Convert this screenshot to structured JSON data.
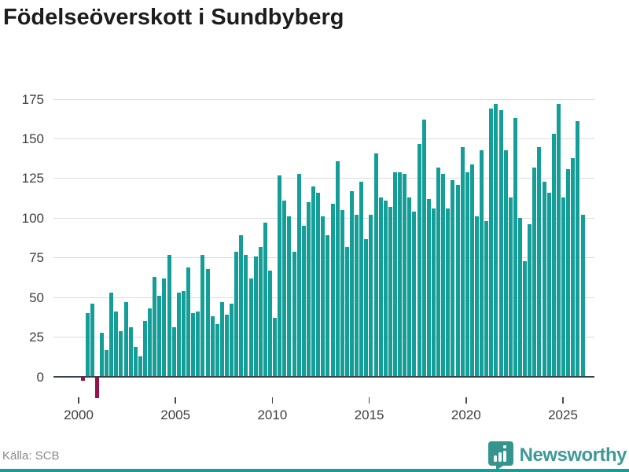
{
  "title": "Födelseöverskott i Sundbyberg",
  "footer": {
    "source": "Källa: SCB",
    "brand": "Newsworthy"
  },
  "colors": {
    "bar_positive": "#149e97",
    "bar_negative": "#9b1048",
    "axis": "#37424a",
    "gridline": "#dcdcdc",
    "tick_label": "#3f3f3f",
    "title": "#1d1d1d",
    "source_text": "#8a8a8a",
    "brand": "#3d9a96",
    "bottom_strip": "#149e97"
  },
  "chart_data": {
    "type": "bar",
    "title": "Födelseöverskott i Sundbyberg",
    "frequency": "quarterly",
    "start_period": "2000 Q1",
    "x_tick_labels": [
      "2000",
      "2005",
      "2010",
      "2015",
      "2020",
      "2025"
    ],
    "y_tick_labels": [
      "0",
      "25",
      "50",
      "75",
      "100",
      "125",
      "150",
      "175"
    ],
    "y_ticks": [
      0,
      25,
      50,
      75,
      100,
      125,
      150,
      175
    ],
    "ylim": [
      -20,
      180
    ],
    "grid": "horizontal",
    "legend": "none",
    "values": [
      -2,
      40,
      46,
      -13,
      28,
      17,
      53,
      41,
      29,
      47,
      31,
      19,
      13,
      35,
      43,
      63,
      51,
      62,
      77,
      31,
      53,
      54,
      69,
      40,
      41,
      77,
      68,
      38,
      33,
      47,
      39,
      46,
      79,
      89,
      77,
      62,
      76,
      82,
      97,
      67,
      37,
      127,
      111,
      101,
      79,
      128,
      95,
      110,
      120,
      116,
      101,
      89,
      109,
      136,
      105,
      82,
      117,
      102,
      123,
      87,
      102,
      141,
      113,
      111,
      107,
      129,
      129,
      128,
      113,
      104,
      147,
      162,
      112,
      106,
      132,
      128,
      106,
      124,
      121,
      145,
      129,
      134,
      101,
      143,
      98,
      169,
      172,
      168,
      143,
      113,
      163,
      100,
      73,
      96,
      132,
      145,
      123,
      116,
      153,
      172,
      113,
      131,
      138,
      161,
      102
    ]
  }
}
